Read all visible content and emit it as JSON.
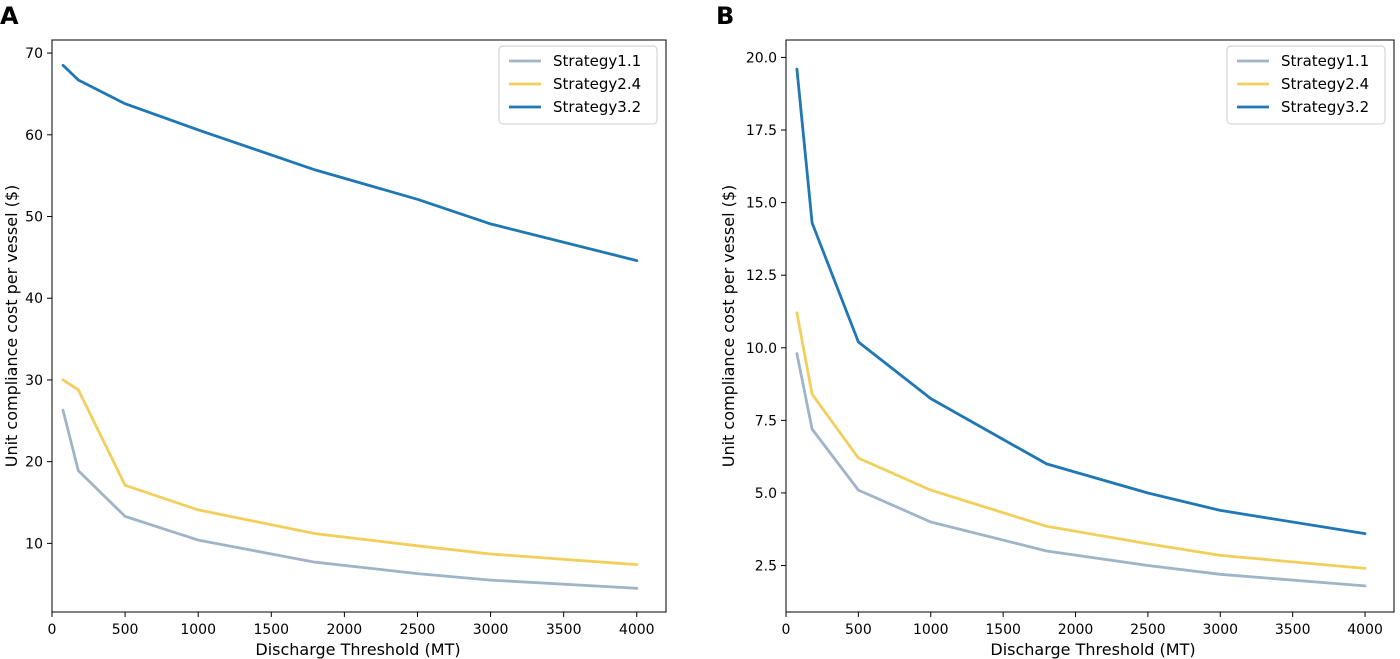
{
  "figure_labels": [
    "A",
    "B"
  ],
  "colors": {
    "Strategy1.1": "#9fb4c7",
    "Strategy2.4": "#f2cf5b",
    "Strategy3.2": "#1f77b4",
    "axis": "#000000"
  },
  "chart_data": [
    {
      "type": "line",
      "panel": "A",
      "title": "",
      "xlabel": "Discharge Threshold (MT)",
      "ylabel": "Unit compliance cost per vessel ($)",
      "xlim": [
        0,
        4200
      ],
      "ylim": [
        1.6,
        71.6
      ],
      "xticks": [
        0,
        500,
        1000,
        1500,
        2000,
        2500,
        3000,
        3500,
        4000
      ],
      "xtick_labels": [
        "0",
        "500",
        "1000",
        "1500",
        "2000",
        "2500",
        "3000",
        "3500",
        "4000"
      ],
      "yticks": [
        10,
        20,
        30,
        40,
        50,
        60,
        70
      ],
      "ytick_labels": [
        "10",
        "20",
        "30",
        "40",
        "50",
        "60",
        "70"
      ],
      "legend": "top-right",
      "x": [
        75,
        180,
        500,
        1000,
        1800,
        2500,
        3000,
        4000
      ],
      "series": [
        {
          "name": "Strategy1.1",
          "values": [
            26.3,
            18.9,
            13.3,
            10.4,
            7.7,
            6.3,
            5.5,
            4.5
          ]
        },
        {
          "name": "Strategy2.4",
          "values": [
            30.0,
            28.8,
            17.1,
            14.1,
            11.2,
            9.7,
            8.7,
            7.4
          ]
        },
        {
          "name": "Strategy3.2",
          "values": [
            68.5,
            66.7,
            63.8,
            60.6,
            55.7,
            52.1,
            49.1,
            44.6
          ]
        }
      ]
    },
    {
      "type": "line",
      "panel": "B",
      "title": "",
      "xlabel": "Discharge Threshold (MT)",
      "ylabel": "Unit compliance cost per vessel ($)",
      "xlim": [
        0,
        4200
      ],
      "ylim": [
        0.9,
        20.6
      ],
      "xticks": [
        0,
        500,
        1000,
        1500,
        2000,
        2500,
        3000,
        3500,
        4000
      ],
      "xtick_labels": [
        "0",
        "500",
        "1000",
        "1500",
        "2000",
        "2500",
        "3000",
        "3500",
        "4000"
      ],
      "yticks": [
        2.5,
        5.0,
        7.5,
        10.0,
        12.5,
        15.0,
        17.5,
        20.0
      ],
      "ytick_labels": [
        "2.5",
        "5.0",
        "7.5",
        "10.0",
        "12.5",
        "15.0",
        "17.5",
        "20.0"
      ],
      "legend": "top-right",
      "x": [
        75,
        180,
        500,
        1000,
        1800,
        2500,
        3000,
        4000
      ],
      "series": [
        {
          "name": "Strategy1.1",
          "values": [
            9.8,
            7.2,
            5.1,
            4.0,
            3.0,
            2.5,
            2.2,
            1.8
          ]
        },
        {
          "name": "Strategy2.4",
          "values": [
            11.2,
            8.4,
            6.2,
            5.1,
            3.85,
            3.25,
            2.85,
            2.4
          ]
        },
        {
          "name": "Strategy3.2",
          "values": [
            19.6,
            14.3,
            10.2,
            8.25,
            6.0,
            5.0,
            4.4,
            3.6
          ]
        }
      ]
    }
  ]
}
